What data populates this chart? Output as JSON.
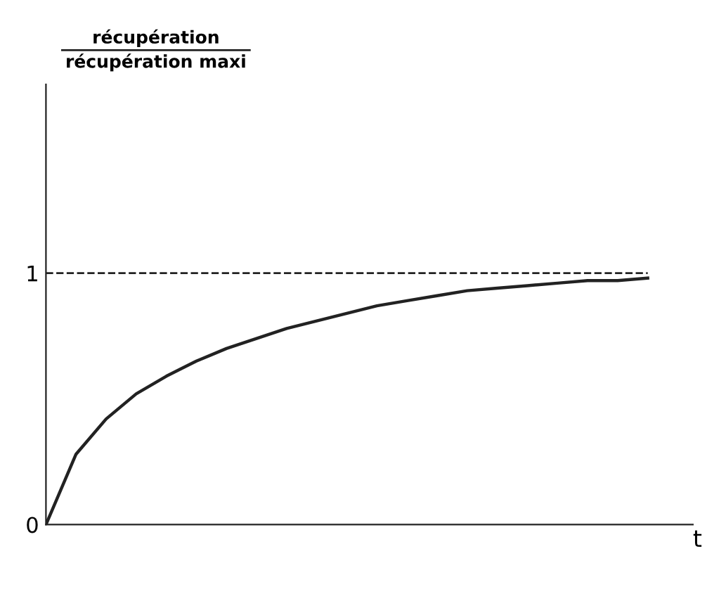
{
  "chart_data": {
    "type": "line",
    "ylabel": "récupération\nrécupération maxi",
    "xlabel": "t",
    "categories": [
      null,
      null,
      null,
      null,
      null,
      null,
      null,
      null,
      null,
      null,
      null,
      null,
      null,
      null,
      null,
      null,
      null,
      null,
      null,
      null,
      null
    ],
    "series": [
      {
        "color": "#222222",
        "values": [
          0,
          0.28,
          0.42,
          0.52,
          0.59,
          0.65,
          0.7,
          0.74,
          0.78,
          0.81,
          0.84,
          0.87,
          0.89,
          0.91,
          0.93,
          0.94,
          0.95,
          0.96,
          0.97,
          0.97,
          0.98
        ]
      }
    ],
    "ylim": [
      0,
      1.75
    ],
    "yticks": [
      0,
      1
    ],
    "ref_lines": [
      {
        "axis": "y",
        "value": 1,
        "color": "#222222",
        "line_style": "dashed"
      }
    ],
    "grid": false,
    "legend": false,
    "marker": "none",
    "line_style": "solid"
  }
}
